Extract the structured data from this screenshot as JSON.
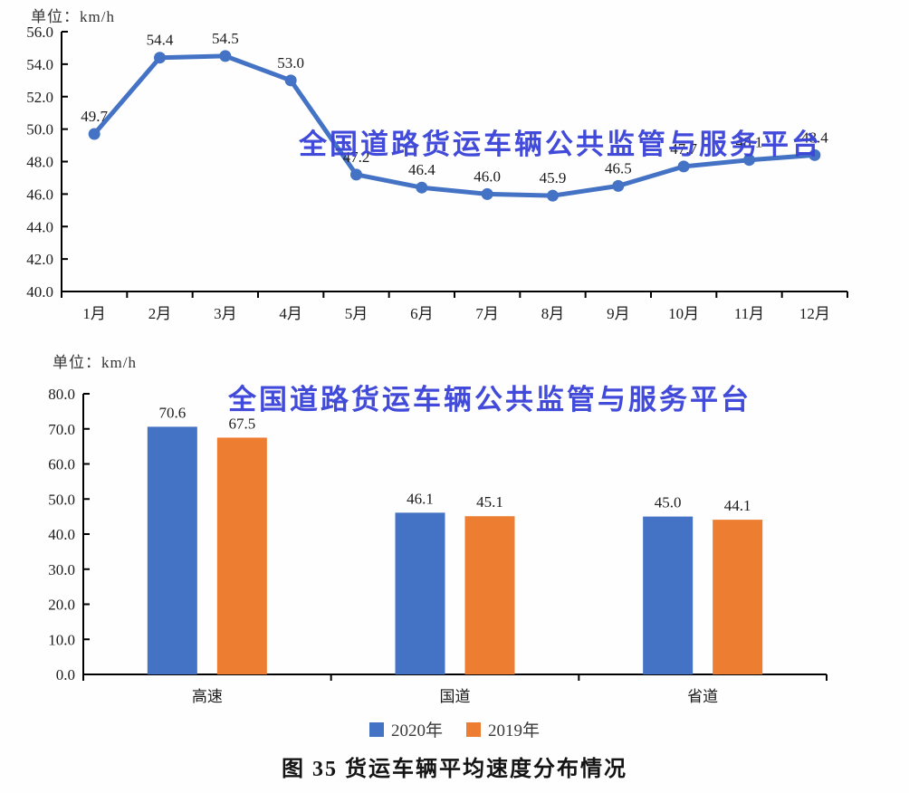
{
  "watermark": {
    "text": "全国道路货运车辆公共监管与服务平台",
    "color": "#3B44D8"
  },
  "caption": {
    "text": "图 35 货运车辆平均速度分布情况"
  },
  "legend": {
    "items": [
      {
        "label": "2020年",
        "color": "#4472C4"
      },
      {
        "label": "2019年",
        "color": "#ED7D31"
      }
    ]
  },
  "chart_data": [
    {
      "id": "monthly-average-speed",
      "type": "line",
      "unit_label": "单位：km/h",
      "categories": [
        "1月",
        "2月",
        "3月",
        "4月",
        "5月",
        "6月",
        "7月",
        "8月",
        "9月",
        "10月",
        "11月",
        "12月"
      ],
      "series": [
        {
          "color": "#4472C4",
          "values": [
            49.7,
            54.4,
            54.5,
            53.0,
            47.2,
            46.4,
            46.0,
            45.9,
            46.5,
            47.7,
            48.1,
            48.4
          ]
        }
      ],
      "ylim": [
        40.0,
        56.0
      ],
      "ytick_step": 2.0,
      "grid": false,
      "data_labels": true,
      "legend_position": "none"
    },
    {
      "id": "speed-by-road-type",
      "type": "bar",
      "unit_label": "单位：km/h",
      "categories": [
        "高速",
        "国道",
        "省道"
      ],
      "series": [
        {
          "name": "2020年",
          "color": "#4472C4",
          "values": [
            70.6,
            46.1,
            45.0
          ]
        },
        {
          "name": "2019年",
          "color": "#ED7D31",
          "values": [
            67.5,
            45.1,
            44.1
          ]
        }
      ],
      "ylim": [
        0.0,
        80.0
      ],
      "ytick_step": 10.0,
      "grid": false,
      "data_labels": true,
      "legend_position": "bottom"
    }
  ]
}
